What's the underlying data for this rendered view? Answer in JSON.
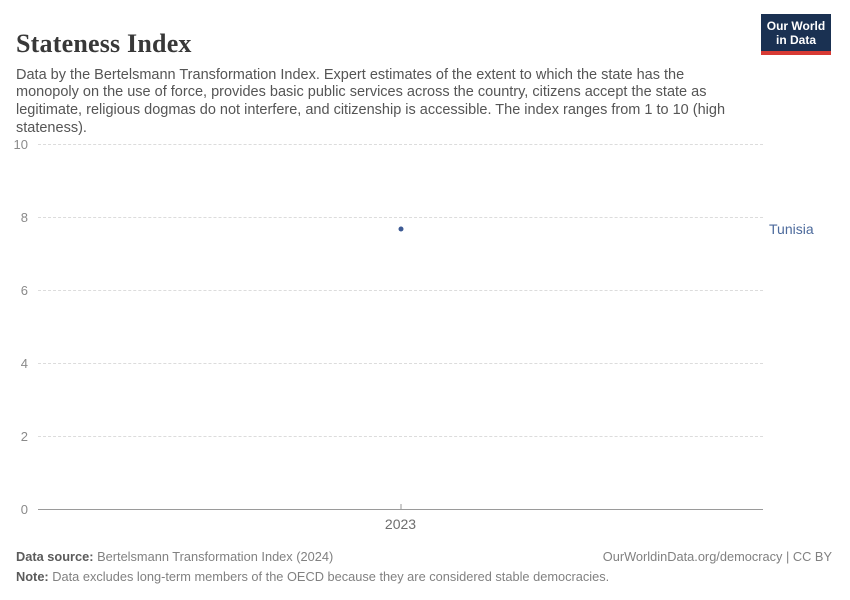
{
  "header": {
    "title": "Stateness Index",
    "subtitle": "Data by the Bertelsmann Transformation Index. Expert estimates of the extent to which the state has the monopoly on the use of force, provides basic public services across the country, citizens accept the state as legitimate, religious dogmas do not interfere, and citizenship is accessible. The index ranges from 1 to 10 (high stateness).",
    "logo": {
      "line1": "Our World",
      "line2": "in Data",
      "bg_color": "#1a3152",
      "accent_color": "#d73a34"
    }
  },
  "chart_data": {
    "type": "scatter",
    "title": "Stateness Index",
    "x": [
      2023
    ],
    "x_tick_labels": [
      "2023"
    ],
    "series": [
      {
        "name": "Tunisia",
        "values": [
          7.7
        ],
        "color": "#3d5a94",
        "label_color": "#4c6a9c"
      }
    ],
    "ylim": [
      0,
      10
    ],
    "y_ticks": [
      0,
      2,
      4,
      6,
      8,
      10
    ],
    "grid": true,
    "gridline_color": "#dcdcdc",
    "axis_color": "#9a9a9a",
    "legend_position": "right-entity-label"
  },
  "footer": {
    "data_source_label": "Data source:",
    "data_source": "Bertelsmann Transformation Index (2024)",
    "note_label": "Note:",
    "note": "Data excludes long-term members of the OECD because they are considered stable democracies.",
    "link": "OurWorldinData.org/democracy | CC BY"
  }
}
